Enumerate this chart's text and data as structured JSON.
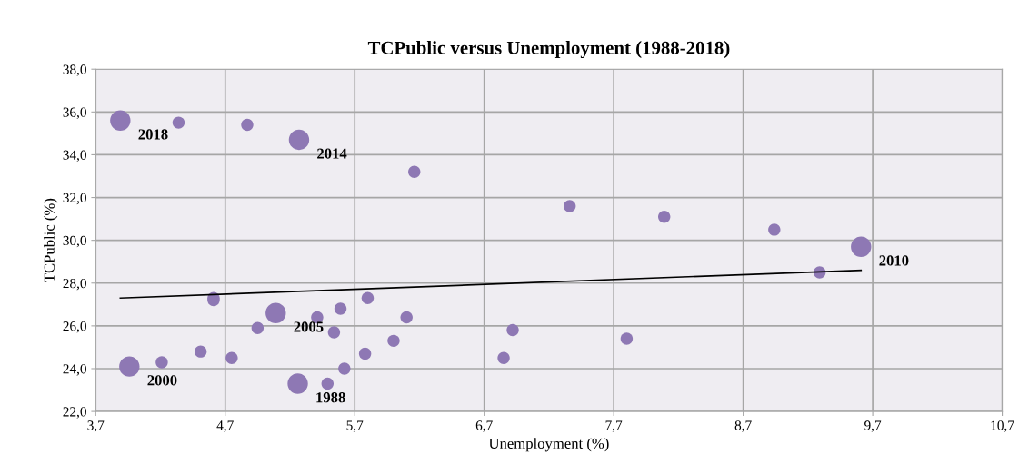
{
  "chart_data": {
    "type": "bubble",
    "title": "TCPublic versus Unemployment (1988-2018)",
    "xlabel": "Unemployment (%)",
    "ylabel": "TCPublic (%)",
    "xlim": [
      3.7,
      10.7
    ],
    "ylim": [
      22,
      38
    ],
    "xticks": [
      {
        "value": 3.7,
        "label": "3,7"
      },
      {
        "value": 4.7,
        "label": "4,7"
      },
      {
        "value": 5.7,
        "label": "5,7"
      },
      {
        "value": 6.7,
        "label": "6,7"
      },
      {
        "value": 7.7,
        "label": "7,7"
      },
      {
        "value": 8.7,
        "label": "8,7"
      },
      {
        "value": 9.7,
        "label": "9,7"
      },
      {
        "value": 10.7,
        "label": "10,7"
      }
    ],
    "yticks": [
      {
        "value": 22,
        "label": "22,0"
      },
      {
        "value": 24,
        "label": "24,0"
      },
      {
        "value": 26,
        "label": "26,0"
      },
      {
        "value": 28,
        "label": "28,0"
      },
      {
        "value": 30,
        "label": "30,0"
      },
      {
        "value": 32,
        "label": "32,0"
      },
      {
        "value": 34,
        "label": "34,0"
      },
      {
        "value": 36,
        "label": "36,0"
      },
      {
        "value": 38,
        "label": "38,0"
      }
    ],
    "grid": true,
    "legend": false,
    "series": [
      {
        "marker": "circle",
        "color": "#8e78b4",
        "x": [
          3.89,
          4.34,
          4.87,
          5.27,
          6.16,
          4.61,
          4.61,
          5.09,
          5.41,
          5.59,
          5.8,
          6.1,
          4.95,
          5.54,
          6.0,
          5.78,
          4.51,
          4.21,
          3.96,
          4.75,
          5.62,
          5.26,
          5.49,
          7.36,
          8.09,
          6.92,
          6.85,
          7.8,
          8.94,
          9.61,
          9.29
        ],
        "values": [
          35.6,
          35.5,
          35.4,
          34.7,
          33.2,
          27.3,
          27.2,
          26.6,
          26.4,
          26.8,
          27.3,
          26.4,
          25.9,
          25.7,
          25.3,
          24.7,
          24.8,
          24.3,
          24.1,
          24.5,
          24.0,
          23.3,
          23.3,
          31.6,
          31.1,
          25.8,
          24.5,
          25.4,
          30.5,
          29.7,
          28.5
        ],
        "sizes": [
          1,
          0.36,
          0.36,
          1,
          0.36,
          0.36,
          0.36,
          1,
          0.36,
          0.36,
          0.36,
          0.36,
          0.36,
          0.36,
          0.36,
          0.36,
          0.36,
          0.36,
          1,
          0.36,
          0.36,
          1,
          0.36,
          0.36,
          0.36,
          0.36,
          0.36,
          0.36,
          0.36,
          1,
          0.36
        ]
      },
      {
        "type": "line",
        "marker": "none",
        "color": "#000000",
        "x": [
          3.89,
          9.61
        ],
        "values": [
          27.3,
          28.6
        ]
      }
    ],
    "annotations": [
      {
        "text": "2018",
        "x": 3.89,
        "y": 35.6
      },
      {
        "text": "2014",
        "x": 5.27,
        "y": 34.7
      },
      {
        "text": "2005",
        "x": 5.09,
        "y": 26.6
      },
      {
        "text": "2000",
        "x": 3.96,
        "y": 24.1
      },
      {
        "text": "1988",
        "x": 5.26,
        "y": 23.3
      },
      {
        "text": "2010",
        "x": 9.61,
        "y": 29.7
      }
    ]
  }
}
